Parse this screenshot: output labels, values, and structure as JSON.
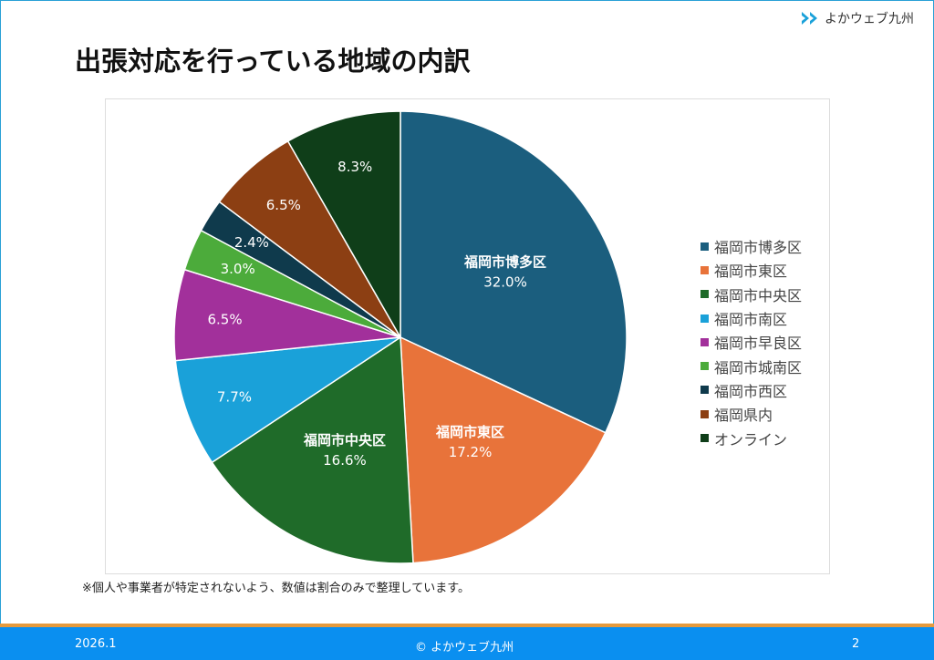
{
  "header": {
    "logo_text": "よかウェブ九州",
    "title": "出張対応を行っている地域の内訳"
  },
  "chart_data": {
    "type": "pie",
    "title": "",
    "start": "top-clockwise",
    "legend_position": "right",
    "slices": [
      {
        "name": "福岡市博多区",
        "value": 32.0,
        "label": "32.0%",
        "color": "#1b5e7e",
        "show_name": true
      },
      {
        "name": "福岡市東区",
        "value": 17.2,
        "label": "17.2%",
        "color": "#e8733a",
        "show_name": true
      },
      {
        "name": "福岡市中央区",
        "value": 16.6,
        "label": "16.6%",
        "color": "#1f6b29",
        "show_name": true
      },
      {
        "name": "福岡市南区",
        "value": 7.7,
        "label": "7.7%",
        "color": "#1aa1d9",
        "show_name": false
      },
      {
        "name": "福岡市早良区",
        "value": 6.5,
        "label": "6.5%",
        "color": "#a2309b",
        "show_name": false
      },
      {
        "name": "福岡市城南区",
        "value": 3.0,
        "label": "3.0%",
        "color": "#4cab3b",
        "show_name": false
      },
      {
        "name": "福岡市西区",
        "value": 2.4,
        "label": "2.4%",
        "color": "#0f3a4c",
        "show_name": false
      },
      {
        "name": "福岡県内",
        "value": 6.5,
        "label": "6.5%",
        "color": "#8c3f13",
        "show_name": false
      },
      {
        "name": "オンライン",
        "value": 8.3,
        "label": "8.3%",
        "color": "#0f3e19",
        "show_name": false
      }
    ]
  },
  "note": "※個人や事業者が特定されないよう、数値は割合のみで整理しています。",
  "footer": {
    "date": "2026.1",
    "copyright": "© よかウェブ九州",
    "page": "2"
  }
}
